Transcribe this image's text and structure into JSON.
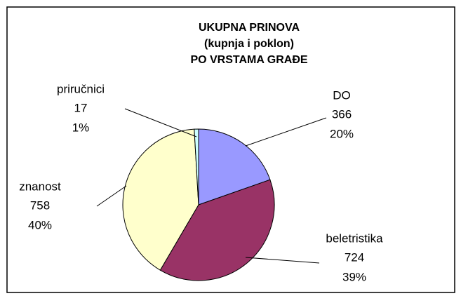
{
  "chart_data": {
    "type": "pie",
    "title": [
      "UKUPNA PRINOVA",
      "(kupnja i poklon)",
      "PO VRSTAMA GRAĐE"
    ],
    "categories": [
      "DO",
      "beletristika",
      "znanost",
      "priručnici"
    ],
    "values": [
      366,
      724,
      758,
      17
    ],
    "percent_labels": [
      "20%",
      "39%",
      "40%",
      "1%"
    ],
    "colors": [
      "#9999ff",
      "#993366",
      "#ffffcc",
      "#ccffff"
    ]
  }
}
